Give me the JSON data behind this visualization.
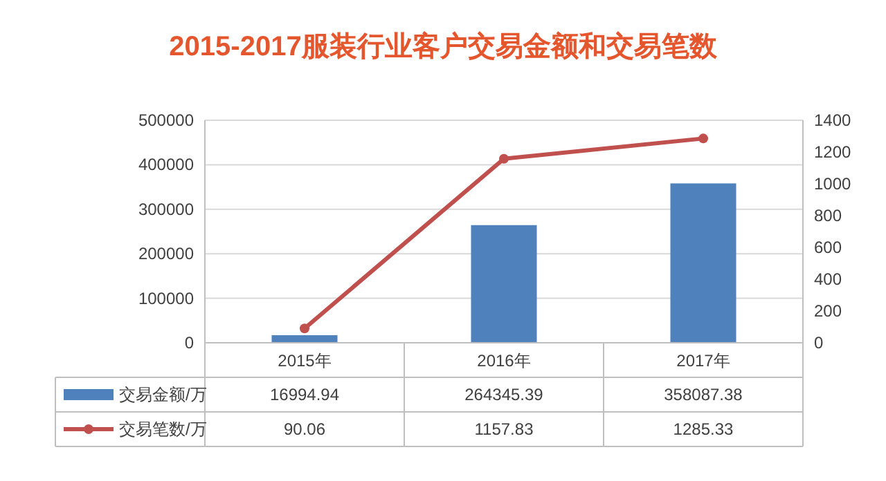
{
  "chart_data": {
    "type": "bar",
    "title": "2015-2017服装行业客户交易金额和交易笔数",
    "categories": [
      "2015年",
      "2016年",
      "2017年"
    ],
    "series": [
      {
        "name": "交易金额/万",
        "color": "#4f81bd",
        "values": [
          16994.94,
          264345.39,
          358087.38
        ]
      },
      {
        "name": "交易笔数/万",
        "type": "line",
        "axis": "y2",
        "color": "#c0504d",
        "values": [
          90.06,
          1157.83,
          1285.33
        ]
      }
    ],
    "ylim": [
      0,
      500000
    ],
    "yticks": [
      0,
      100000,
      200000,
      300000,
      400000,
      500000
    ],
    "y2lim": [
      0,
      1400
    ],
    "y2ticks": [
      0,
      200,
      400,
      600,
      800,
      1000,
      1200,
      1400
    ],
    "grid": "y",
    "marker": "circle",
    "data_labels": true,
    "legend": "bottom"
  }
}
